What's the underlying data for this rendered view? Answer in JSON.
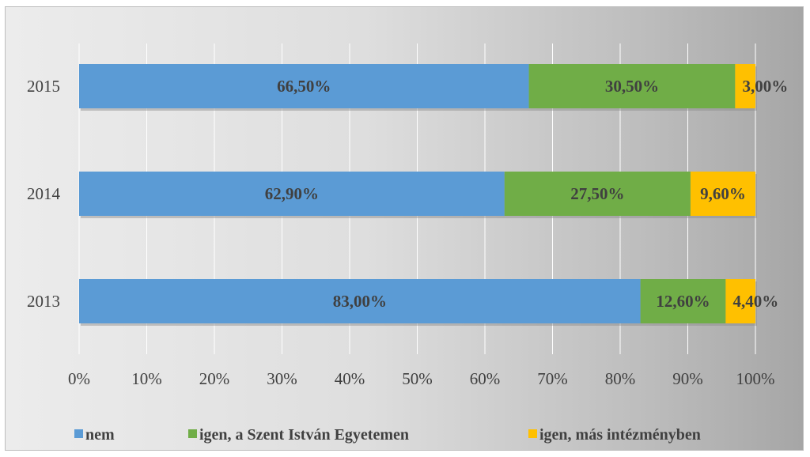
{
  "chart_data": {
    "type": "bar",
    "orientation": "horizontal",
    "stacked": true,
    "categories": [
      "2015",
      "2014",
      "2013"
    ],
    "series": [
      {
        "name": "nem",
        "color": "#5b9bd5",
        "values": [
          66.5,
          62.9,
          83.0
        ],
        "labels": [
          "66,50%",
          "62,90%",
          "83,00%"
        ]
      },
      {
        "name": "igen, a Szent István Egyetemen",
        "color": "#70ad47",
        "values": [
          30.5,
          27.5,
          12.6
        ],
        "labels": [
          "30,50%",
          "27,50%",
          "12,60%"
        ]
      },
      {
        "name": "igen, más intézményben",
        "color": "#ffc000",
        "values": [
          3.0,
          9.6,
          4.4
        ],
        "labels": [
          "3,00%",
          "9,60%",
          "4,40%"
        ]
      }
    ],
    "xlim": [
      0,
      100
    ],
    "xticks": [
      "0%",
      "10%",
      "20%",
      "30%",
      "40%",
      "50%",
      "60%",
      "70%",
      "80%",
      "90%",
      "100%"
    ],
    "grid": true,
    "legend_position": "bottom"
  }
}
